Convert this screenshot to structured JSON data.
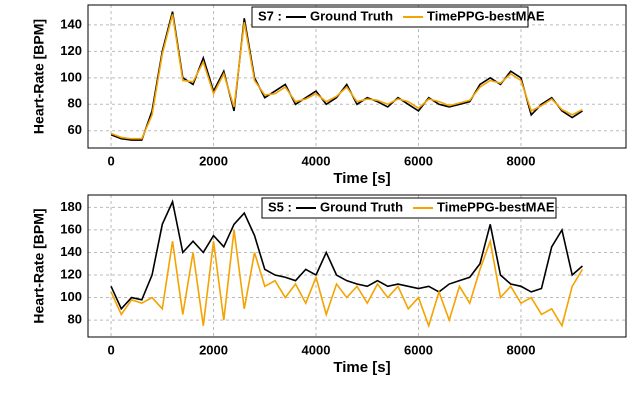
{
  "chart_data": [
    {
      "type": "line",
      "legend_title": "S7 :",
      "xlabel": "Time [s]",
      "ylabel": "Heart-Rate [BPM]",
      "x": [
        0,
        200,
        400,
        600,
        800,
        1000,
        1200,
        1400,
        1600,
        1800,
        2000,
        2200,
        2400,
        2600,
        2800,
        3000,
        3200,
        3400,
        3600,
        3800,
        4000,
        4200,
        4400,
        4600,
        4800,
        5000,
        5200,
        5400,
        5600,
        5800,
        6000,
        6200,
        6400,
        6600,
        6800,
        7000,
        7200,
        7400,
        7600,
        7800,
        8000,
        8200,
        8400,
        8600,
        8800,
        9000,
        9200
      ],
      "series": [
        {
          "name": "Ground Truth",
          "color": "#000000",
          "values": [
            57,
            54,
            53,
            53,
            75,
            120,
            150,
            100,
            95,
            115,
            90,
            105,
            75,
            145,
            100,
            85,
            90,
            95,
            80,
            85,
            90,
            80,
            85,
            95,
            80,
            85,
            82,
            78,
            85,
            80,
            75,
            85,
            80,
            78,
            80,
            82,
            95,
            100,
            95,
            105,
            100,
            72,
            80,
            85,
            75,
            70,
            75
          ]
        },
        {
          "name": "TimePPG-bestMAE",
          "color": "#f5a300",
          "values": [
            58,
            55,
            54,
            54,
            72,
            118,
            148,
            98,
            97,
            112,
            88,
            103,
            78,
            142,
            98,
            87,
            88,
            93,
            82,
            84,
            88,
            82,
            86,
            93,
            82,
            84,
            83,
            80,
            84,
            82,
            77,
            84,
            82,
            79,
            81,
            83,
            93,
            98,
            96,
            103,
            98,
            75,
            79,
            84,
            76,
            72,
            76
          ]
        }
      ],
      "xlim": [
        -450,
        10050
      ],
      "xticks": [
        0,
        2000,
        4000,
        6000,
        8000
      ],
      "ylim": [
        47,
        155
      ],
      "yticks": [
        60,
        80,
        100,
        120,
        140
      ],
      "grid": true
    },
    {
      "type": "line",
      "legend_title": "S5 :",
      "xlabel": "Time [s]",
      "ylabel": "Heart-Rate [BPM]",
      "x": [
        0,
        200,
        400,
        600,
        800,
        1000,
        1200,
        1400,
        1600,
        1800,
        2000,
        2200,
        2400,
        2600,
        2800,
        3000,
        3200,
        3400,
        3600,
        3800,
        4000,
        4200,
        4400,
        4600,
        4800,
        5000,
        5200,
        5400,
        5600,
        5800,
        6000,
        6200,
        6400,
        6600,
        6800,
        7000,
        7200,
        7400,
        7600,
        7800,
        8000,
        8200,
        8400,
        8600,
        8800,
        9000,
        9200
      ],
      "series": [
        {
          "name": "Ground Truth",
          "color": "#000000",
          "values": [
            110,
            90,
            100,
            98,
            120,
            165,
            185,
            140,
            150,
            140,
            155,
            145,
            165,
            175,
            155,
            125,
            120,
            118,
            115,
            125,
            120,
            140,
            120,
            115,
            112,
            110,
            115,
            110,
            112,
            110,
            108,
            110,
            105,
            112,
            115,
            118,
            130,
            165,
            120,
            112,
            110,
            105,
            108,
            145,
            160,
            120,
            128
          ]
        },
        {
          "name": "TimePPG-bestMAE",
          "color": "#f5a300",
          "values": [
            105,
            85,
            98,
            95,
            100,
            90,
            150,
            85,
            140,
            75,
            150,
            80,
            160,
            90,
            140,
            110,
            115,
            100,
            112,
            95,
            118,
            85,
            112,
            100,
            110,
            95,
            112,
            100,
            110,
            90,
            100,
            75,
            105,
            80,
            110,
            95,
            125,
            150,
            100,
            110,
            95,
            100,
            85,
            90,
            75,
            110,
            125
          ]
        }
      ],
      "xlim": [
        -450,
        10050
      ],
      "xticks": [
        0,
        2000,
        4000,
        6000,
        8000
      ],
      "ylim": [
        65,
        191
      ],
      "yticks": [
        80,
        100,
        120,
        140,
        160,
        180
      ],
      "grid": true
    }
  ]
}
